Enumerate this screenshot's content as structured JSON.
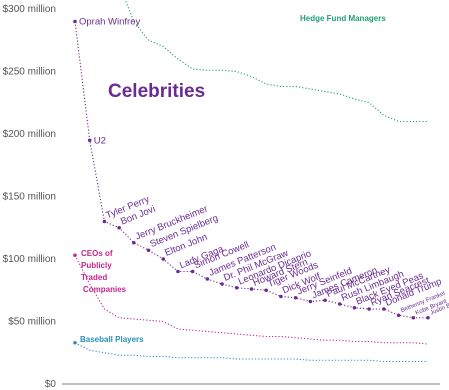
{
  "chart_data": {
    "type": "line",
    "title": "",
    "xlabel": "",
    "ylabel": "",
    "ylim": [
      0,
      305
    ],
    "yticks": [
      {
        "value": 0,
        "label": "$0"
      },
      {
        "value": 50,
        "label": "$50 million"
      },
      {
        "value": 100,
        "label": "$100 million"
      },
      {
        "value": 150,
        "label": "$150 million"
      },
      {
        "value": 200,
        "label": "$200 million"
      },
      {
        "value": 250,
        "label": "$250 million"
      },
      {
        "value": 300,
        "label": "$300 million"
      }
    ],
    "grid": false,
    "group_label": "Celebrities",
    "celebrities": {
      "color": "#6b2c91",
      "points": [
        {
          "name": "Oprah Winfrey",
          "value": 290
        },
        {
          "name": "U2",
          "value": 195
        },
        {
          "name": "Tyler Perry",
          "value": 130
        },
        {
          "name": "Bon Jovi",
          "value": 125
        },
        {
          "name": "Jerry Bruckheimer",
          "value": 113
        },
        {
          "name": "Steven Spielberg",
          "value": 107
        },
        {
          "name": "Elton John",
          "value": 100
        },
        {
          "name": "Lady Gaga",
          "value": 90
        },
        {
          "name": "Simon Cowell",
          "value": 90
        },
        {
          "name": "James Patterson",
          "value": 84
        },
        {
          "name": "Dr. Phil McGraw",
          "value": 80
        },
        {
          "name": "Leonardo Dicaprio",
          "value": 77
        },
        {
          "name": "Howard Stern",
          "value": 76
        },
        {
          "name": "Tiger Woods",
          "value": 75
        },
        {
          "name": "Dick Wolf",
          "value": 70
        },
        {
          "name": "Jerry Seinfeld",
          "value": 69
        },
        {
          "name": "James Cameron",
          "value": 66
        },
        {
          "name": "Paul McCartney",
          "value": 67
        },
        {
          "name": "Rush Limbaugh",
          "value": 64
        },
        {
          "name": "Black Eyed Peas",
          "value": 61
        },
        {
          "name": "Ryan Seacrest",
          "value": 60
        },
        {
          "name": "Donald Trump",
          "value": 60
        },
        {
          "name": "Bethenny Frankel",
          "value": 55
        },
        {
          "name": "Kobe Bryant",
          "value": 53
        },
        {
          "name": "Justin Bieber",
          "value": 53
        }
      ]
    },
    "series": [
      {
        "name": "Hedge Fund Managers",
        "color": "#1f9e77",
        "values": [
          330,
          330,
          330,
          320,
          290,
          275,
          270,
          260,
          252,
          251,
          251,
          250,
          246,
          240,
          238,
          238,
          236,
          234,
          232,
          228,
          225,
          215,
          210,
          210,
          210
        ]
      },
      {
        "name": "CEOs of Publicly Traded Companies",
        "label_lines": [
          "CEOs of",
          "Publicly",
          "Traded",
          "Companies"
        ],
        "color": "#c0288a",
        "values": [
          103,
          80,
          60,
          53,
          52,
          51,
          50,
          44,
          43,
          42,
          41,
          40,
          39,
          38,
          38,
          37,
          36,
          35,
          35,
          34,
          34,
          33,
          33,
          33,
          32
        ]
      },
      {
        "name": "Baseball Players",
        "color": "#2a8fbd",
        "values": [
          33,
          27,
          25,
          23,
          23,
          22,
          22,
          21,
          21,
          21,
          21,
          20,
          20,
          20,
          20,
          20,
          19,
          19,
          19,
          19,
          19,
          18,
          18,
          18,
          18
        ]
      }
    ]
  }
}
